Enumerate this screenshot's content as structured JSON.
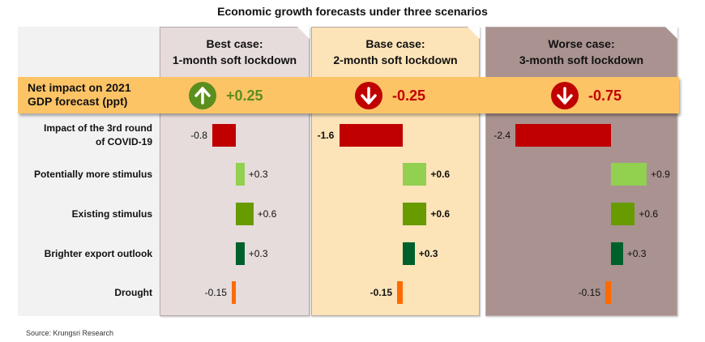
{
  "chart_data": {
    "type": "bar",
    "orientation": "horizontal",
    "title": "Economic growth forecasts under three scenarios",
    "net_label": "Net impact on 2021 GDP forecast (ppt)",
    "net_label_lines": [
      "Net impact on 2021",
      "GDP forecast (ppt)"
    ],
    "categories": [
      "Impact of the 3rd round of COVID-19",
      "Potentially more stimulus",
      "Existing stimulus",
      "Brighter export outlook",
      "Drought"
    ],
    "category_lines": [
      [
        "Impact of the 3rd round",
        "of COVID-19"
      ],
      [
        "Potentially more stimulus"
      ],
      [
        "Existing stimulus"
      ],
      [
        "Brighter export outlook"
      ],
      [
        "Drought"
      ]
    ],
    "category_colors": [
      "#c00000",
      "#92d050",
      "#679b00",
      "#00602b",
      "#ff6a00"
    ],
    "series": [
      {
        "name": "Best case: 1-month soft lockdown",
        "header_lines": [
          "Best case:",
          "1-month soft lockdown"
        ],
        "values": [
          -0.8,
          0.3,
          0.6,
          0.3,
          -0.15
        ],
        "labels": [
          "-0.8",
          "+0.3",
          "+0.6",
          "+0.3",
          "-0.15"
        ],
        "net": 0.25,
        "net_label": "+0.25",
        "net_direction": "up",
        "bold_labels": false
      },
      {
        "name": "Base case: 2-month soft lockdown",
        "header_lines": [
          "Base case:",
          "2-month soft lockdown"
        ],
        "values": [
          -1.6,
          0.6,
          0.6,
          0.3,
          -0.15
        ],
        "labels": [
          "-1.6",
          "+0.6",
          "+0.6",
          "+0.3",
          "-0.15"
        ],
        "net": -0.25,
        "net_label": "-0.25",
        "net_direction": "down",
        "bold_labels": true
      },
      {
        "name": "Worse case: 3-month soft lockdown",
        "header_lines": [
          "Worse case:",
          "3-month soft lockdown"
        ],
        "values": [
          -2.4,
          0.9,
          0.6,
          0.3,
          -0.15
        ],
        "labels": [
          "-2.4",
          "+0.9",
          "+0.6",
          "+0.3",
          "-0.15"
        ],
        "net": -0.75,
        "net_label": "-0.75",
        "net_direction": "down",
        "bold_labels": false
      }
    ],
    "colors": {
      "up": "#5a8f1e",
      "down": "#c00000",
      "net_up_text": "#5a8f1e",
      "net_down_text": "#c00000"
    },
    "xlabel": "",
    "ylabel": "",
    "grid": false,
    "legend": "none"
  },
  "source": "Source: Krungsri Research"
}
